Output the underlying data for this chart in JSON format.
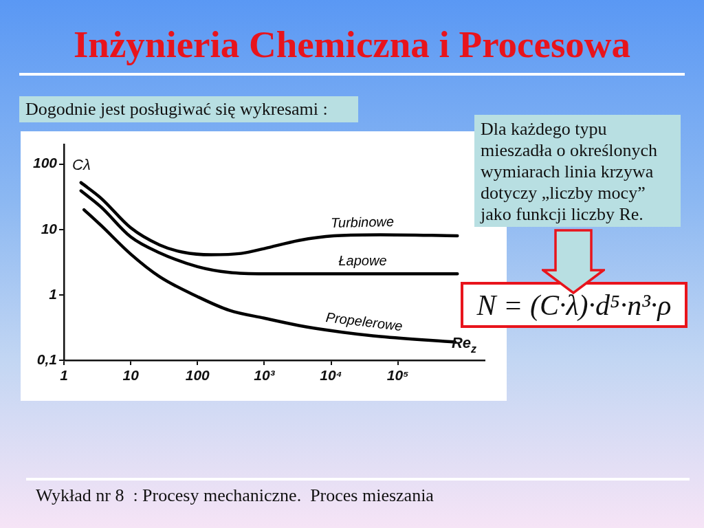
{
  "chart_data": {
    "type": "line",
    "title": "Inżynieria Chemiczna i Procesowa",
    "subtitle": "Dogodnie jest posługiwać się wykresami :",
    "xlabel": "Re$_{z}$",
    "ylabel": "Cλ",
    "series": [
      {
        "name": "Turbinowe",
        "color": "#000000",
        "x": [
          1.8,
          3.6,
          10,
          27,
          60,
          160,
          450,
          1000,
          3300,
          11000,
          55000,
          780000
        ],
        "values": [
          52,
          30,
          10.6,
          5.8,
          4.5,
          4.1,
          4.3,
          5.1,
          6.8,
          8.0,
          8.3,
          8.0
        ]
      },
      {
        "name": "Łapowe",
        "color": "#000000",
        "x": [
          1.8,
          3.6,
          10,
          27,
          100,
          300,
          1000,
          10000,
          780000
        ],
        "values": [
          39,
          22,
          7.7,
          4.4,
          2.7,
          2.2,
          2.1,
          2.1,
          2.1
        ]
      },
      {
        "name": "Propelerowe",
        "color": "#000000",
        "x": [
          2.0,
          3.6,
          10,
          27,
          100,
          300,
          1000,
          3300,
          11000,
          55000,
          720000
        ],
        "values": [
          20,
          11.5,
          4.2,
          1.9,
          0.94,
          0.58,
          0.44,
          0.34,
          0.28,
          0.23,
          0.19
        ]
      }
    ],
    "log": "xy",
    "xlim": [
      1,
      2000000
    ],
    "ylim": [
      0.1,
      200
    ],
    "xticks": [
      1,
      10,
      100,
      {
        "value": 1000,
        "label": "10³"
      },
      {
        "value": 10000,
        "label": "10⁴"
      },
      {
        "value": 100000,
        "label": "10⁵"
      }
    ],
    "yticks": [
      {
        "value": 0.1,
        "label": "0,1"
      },
      1,
      10,
      100
    ],
    "grid": false,
    "legend": false,
    "annotations": [
      "Dla każdego typu mieszadła o określonych wymiarach linia krzywa dotyczy „liczby mocy” jako funkcji liczby Re.",
      "N = (C·λ)·d⁵·n³·ρ",
      "Wykład nr 8  : Procesy mechaniczne.  Proces mieszania"
    ]
  }
}
